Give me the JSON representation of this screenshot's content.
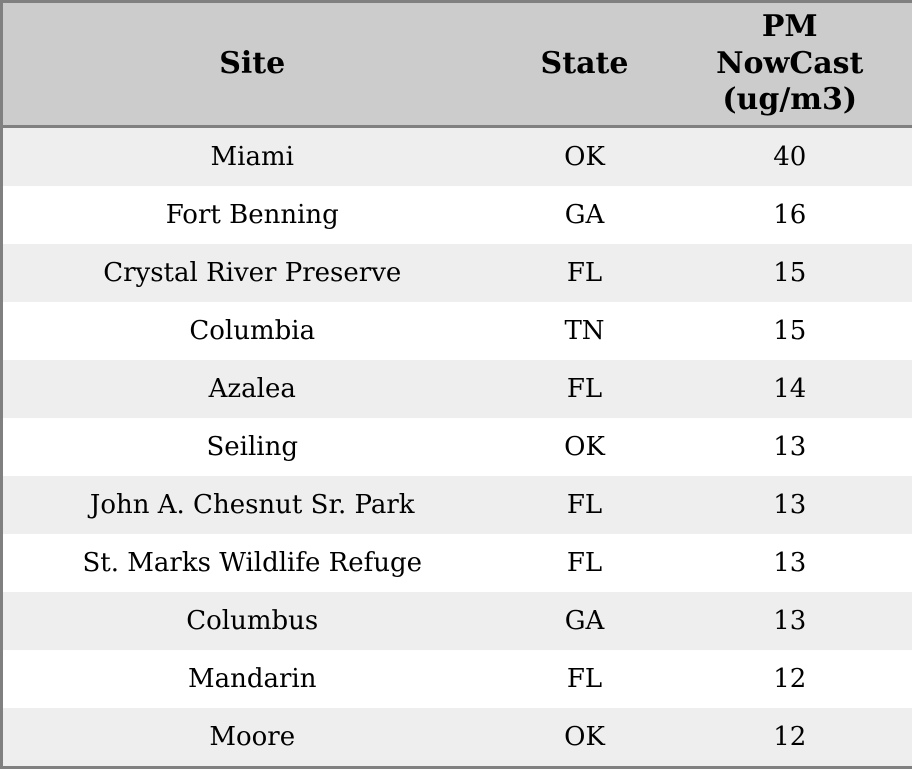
{
  "chart_data": {
    "type": "table",
    "columns": [
      "Site",
      "State",
      "PM NowCast (ug/m3)"
    ],
    "rows": [
      [
        "Miami",
        "OK",
        40
      ],
      [
        "Fort Benning",
        "GA",
        16
      ],
      [
        "Crystal River Preserve",
        "FL",
        15
      ],
      [
        "Columbia",
        "TN",
        15
      ],
      [
        "Azalea",
        "FL",
        14
      ],
      [
        "Seiling",
        "OK",
        13
      ],
      [
        "John A. Chesnut Sr. Park",
        "FL",
        13
      ],
      [
        "St. Marks Wildlife Refuge",
        "FL",
        13
      ],
      [
        "Columbus",
        "GA",
        13
      ],
      [
        "Mandarin",
        "FL",
        12
      ],
      [
        "Moore",
        "OK",
        12
      ]
    ]
  },
  "table": {
    "columns": [
      {
        "label": "Site"
      },
      {
        "label": "State"
      },
      {
        "label": "PM NowCast (ug/m3)"
      }
    ],
    "rows": [
      {
        "site": "Miami",
        "state": "OK",
        "pm": "40"
      },
      {
        "site": "Fort Benning",
        "state": "GA",
        "pm": "16"
      },
      {
        "site": "Crystal River Preserve",
        "state": "FL",
        "pm": "15"
      },
      {
        "site": "Columbia",
        "state": "TN",
        "pm": "15"
      },
      {
        "site": "Azalea",
        "state": "FL",
        "pm": "14"
      },
      {
        "site": "Seiling",
        "state": "OK",
        "pm": "13"
      },
      {
        "site": "John A. Chesnut Sr. Park",
        "state": "FL",
        "pm": "13"
      },
      {
        "site": "St. Marks Wildlife Refuge",
        "state": "FL",
        "pm": "13"
      },
      {
        "site": "Columbus",
        "state": "GA",
        "pm": "13"
      },
      {
        "site": "Mandarin",
        "state": "FL",
        "pm": "12"
      },
      {
        "site": "Moore",
        "state": "OK",
        "pm": "12"
      }
    ],
    "colors": {
      "header_bg": "#cccccc",
      "border": "#808080",
      "row_alt_bg": "#eeeeee",
      "row_bg": "#ffffff",
      "text": "#000000"
    }
  }
}
